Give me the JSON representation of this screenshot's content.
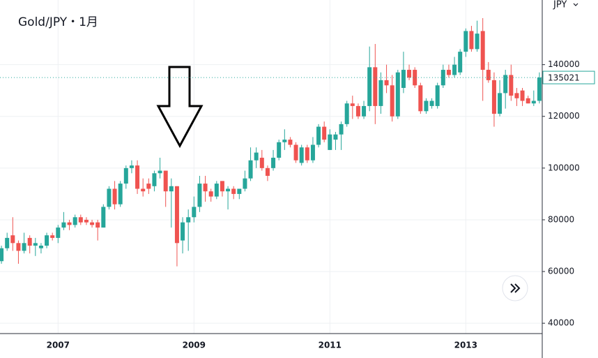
{
  "chart_data": {
    "type": "candlestick",
    "title": "Gold/JPY・1月",
    "y_axis_label": "JPY",
    "last_price": 135021,
    "grid": true,
    "up_color": "#26a69a",
    "down_color": "#ef5350",
    "categories": [
      null,
      null,
      null,
      null,
      null,
      null,
      null,
      null,
      null,
      null,
      "2007",
      null,
      null,
      null,
      null,
      null,
      null,
      null,
      null,
      null,
      null,
      null,
      null,
      null,
      null,
      null,
      null,
      null,
      null,
      null,
      null,
      null,
      null,
      null,
      "2009",
      null,
      null,
      null,
      null,
      null,
      null,
      null,
      null,
      null,
      null,
      null,
      null,
      null,
      null,
      null,
      null,
      null,
      null,
      null,
      null,
      null,
      null,
      null,
      "2011",
      null,
      null,
      null,
      null,
      null,
      null,
      null,
      null,
      null,
      null,
      null,
      null,
      null,
      null,
      null,
      null,
      null,
      null,
      null,
      null,
      null,
      null,
      null,
      "2013",
      null,
      null,
      null,
      null,
      null,
      null,
      null,
      null,
      null,
      null,
      null,
      null,
      null
    ],
    "open": [
      64000,
      69000,
      74000,
      71000,
      68000,
      73000,
      70000,
      69000,
      70000,
      74000,
      73000,
      77000,
      79000,
      78000,
      81000,
      80000,
      79000,
      79000,
      77000,
      85000,
      92000,
      86000,
      94000,
      100000,
      101000,
      92000,
      94000,
      93000,
      98000,
      99000,
      91000,
      93000,
      72000,
      79000,
      81000,
      85000,
      94000,
      91000,
      89000,
      95000,
      91000,
      92000,
      90000,
      92000,
      96000,
      103000,
      104000,
      100000,
      100000,
      104000,
      110000,
      111000,
      109000,
      102000,
      108000,
      103000,
      109000,
      116000,
      107000,
      111000,
      113000,
      117000,
      125000,
      124000,
      120000,
      124000,
      139000,
      124000,
      134000,
      132000,
      120000,
      131000,
      138000,
      138000,
      132000,
      122000,
      124000,
      124000,
      132000,
      138000,
      136000,
      137000,
      145000,
      153000,
      146000,
      153000,
      138000,
      134000,
      121000,
      129000,
      136000,
      129000,
      130000,
      127000,
      125000,
      126000
    ],
    "high": [
      70000,
      75000,
      81000,
      72000,
      75000,
      74000,
      73000,
      71000,
      75000,
      75000,
      78000,
      83000,
      80000,
      82000,
      82000,
      81000,
      80000,
      80000,
      86000,
      93000,
      95000,
      95000,
      101000,
      103000,
      103000,
      96000,
      96000,
      99000,
      104000,
      99000,
      96000,
      93000,
      81000,
      84000,
      89000,
      97000,
      97000,
      92000,
      95000,
      95000,
      93000,
      93000,
      92000,
      99000,
      108000,
      108000,
      107000,
      101000,
      107000,
      111000,
      115000,
      112000,
      110000,
      109000,
      109000,
      112000,
      117000,
      118000,
      115000,
      114000,
      118000,
      126000,
      128000,
      125000,
      126000,
      147000,
      148000,
      137000,
      140000,
      136000,
      138000,
      145000,
      140000,
      139000,
      133000,
      127000,
      127000,
      133000,
      140000,
      140000,
      143000,
      146000,
      154000,
      155000,
      157000,
      158000,
      141000,
      137000,
      134000,
      138000,
      140000,
      131000,
      131000,
      128000,
      130000,
      137000
    ],
    "low": [
      63000,
      68000,
      68000,
      63000,
      67000,
      67000,
      66000,
      67000,
      69000,
      72000,
      71000,
      76000,
      76000,
      77000,
      78000,
      78000,
      77000,
      72000,
      77000,
      84000,
      84000,
      85000,
      92000,
      98000,
      90000,
      89000,
      90000,
      91000,
      96000,
      85000,
      77000,
      62000,
      67000,
      68000,
      79000,
      83000,
      87000,
      87000,
      88000,
      89000,
      84000,
      88000,
      88000,
      91000,
      95000,
      100000,
      99000,
      95000,
      99000,
      103000,
      107000,
      108000,
      102000,
      101000,
      102000,
      102000,
      108000,
      110000,
      107000,
      107000,
      107000,
      116000,
      119000,
      119000,
      119000,
      122000,
      117000,
      121000,
      129000,
      118000,
      119000,
      129000,
      134000,
      131000,
      121000,
      121000,
      123000,
      123000,
      131000,
      135000,
      135000,
      136000,
      143000,
      145000,
      145000,
      126000,
      133000,
      116000,
      120000,
      123000,
      126000,
      124000,
      124000,
      125000,
      124000,
      125000
    ],
    "close": [
      69000,
      73000,
      71000,
      68000,
      71000,
      70000,
      71000,
      70000,
      74000,
      73000,
      77000,
      79000,
      78000,
      81000,
      79000,
      79000,
      78000,
      77000,
      85000,
      92000,
      86000,
      94000,
      100000,
      101000,
      92000,
      91000,
      92000,
      98000,
      99000,
      91000,
      93000,
      71000,
      79000,
      81000,
      85000,
      94000,
      91000,
      89000,
      94000,
      91000,
      92000,
      90000,
      92000,
      96000,
      103000,
      106000,
      100000,
      97000,
      104000,
      110000,
      111000,
      109000,
      103000,
      108000,
      103000,
      109000,
      116000,
      111000,
      113000,
      113000,
      117000,
      125000,
      124000,
      120000,
      124000,
      139000,
      124000,
      134000,
      132000,
      120000,
      137000,
      138000,
      135000,
      132000,
      122000,
      126000,
      126000,
      132000,
      138000,
      136000,
      140000,
      145000,
      153000,
      146000,
      152000,
      138000,
      134000,
      121000,
      129000,
      136000,
      128000,
      127000,
      126000,
      125000,
      126000,
      135021
    ],
    "ylim": [
      36000,
      165000
    ],
    "yticks": [
      40000,
      60000,
      80000,
      100000,
      120000,
      140000
    ]
  }
}
